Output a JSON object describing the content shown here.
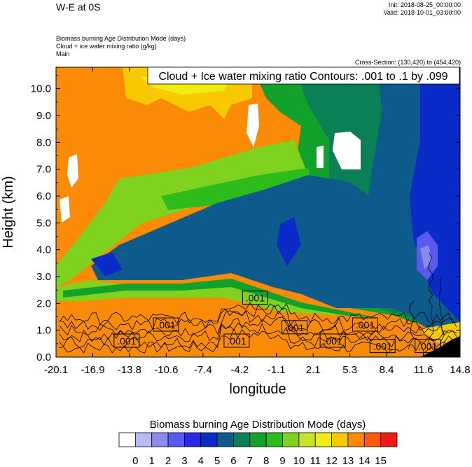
{
  "header": {
    "title": "W-E at 0S",
    "init": "Init: 2018-08-25_00:00:00",
    "valid": "Valid: 2018-10-01_03:00:00",
    "desc_lines": [
      "Biomass burning Age Distribution Mode    (days)",
      "Cloud + ice water mixing ratio    (g/kg)",
      "Main"
    ],
    "cross_section": "Cross-Section: (130,420) to (454,420)"
  },
  "chart_data": {
    "type": "heatmap",
    "title": "Cloud + Ice water mixing ratio Contours: .001 to .1 by .099",
    "xlabel": "longitude",
    "ylabel": "Height (km)",
    "xlim": [
      -20.1,
      14.8
    ],
    "ylim": [
      0.0,
      10.8
    ],
    "x_ticks": [
      "-20.1",
      "-16.9",
      "-13.8",
      "-10.6",
      "-7.4",
      "-4.2",
      "-1.1",
      "2.1",
      "5.3",
      "8.4",
      "11.6",
      "14.8"
    ],
    "y_ticks": [
      "0.0",
      "1.0",
      "2.0",
      "3.0",
      "4.0",
      "5.0",
      "6.0",
      "7.0",
      "8.0",
      "9.0",
      "10.0"
    ],
    "y_tick_values": [
      0,
      1,
      2,
      3,
      4,
      5,
      6,
      7,
      8,
      9,
      10
    ],
    "contour_labels": [
      {
        "text": ".001",
        "lon": -14.0,
        "h": 0.6
      },
      {
        "text": ".001",
        "lon": -10.6,
        "h": 1.2
      },
      {
        "text": ".001",
        "lon": -4.5,
        "h": 0.6
      },
      {
        "text": ".001",
        "lon": -2.9,
        "h": 2.2
      },
      {
        "text": ".001",
        "lon": 0.5,
        "h": 1.1
      },
      {
        "text": ".001",
        "lon": 3.8,
        "h": 0.6
      },
      {
        "text": ".001",
        "lon": 6.6,
        "h": 1.2
      },
      {
        "text": ".001",
        "lon": 8.1,
        "h": 0.4
      },
      {
        "text": ".001",
        "lon": 12.0,
        "h": 0.4
      }
    ],
    "field": {
      "description": "Biomass burning Age Distribution Mode (days) shaded; layer levels by longitude",
      "columns": [
        {
          "lon": -20.1,
          "levels": [
            {
              "top": 1.5,
              "v": 14
            },
            {
              "top": 2.4,
              "v": 11
            },
            {
              "top": 3.0,
              "v": 10
            },
            {
              "top": 10.8,
              "v": 14
            }
          ]
        },
        {
          "lon": -17.0,
          "levels": [
            {
              "top": 1.6,
              "v": 14
            },
            {
              "top": 2.6,
              "v": 11
            },
            {
              "top": 3.3,
              "v": 10
            },
            {
              "top": 3.6,
              "v": 5
            },
            {
              "top": 10.8,
              "v": 14
            }
          ]
        },
        {
          "lon": -14.0,
          "levels": [
            {
              "top": 1.8,
              "v": 14
            },
            {
              "top": 2.8,
              "v": 11
            },
            {
              "top": 3.3,
              "v": 8
            },
            {
              "top": 4.0,
              "v": 5
            },
            {
              "top": 5.5,
              "v": 11
            },
            {
              "top": 8.5,
              "v": 14
            },
            {
              "top": 10.8,
              "v": 13
            }
          ]
        },
        {
          "lon": -10.0,
          "levels": [
            {
              "top": 1.9,
              "v": 14
            },
            {
              "top": 2.9,
              "v": 11
            },
            {
              "top": 3.4,
              "v": 8
            },
            {
              "top": 5.2,
              "v": 5
            },
            {
              "top": 6.5,
              "v": 11
            },
            {
              "top": 10.8,
              "v": 12
            }
          ]
        },
        {
          "lon": -6.0,
          "levels": [
            {
              "top": 2.0,
              "v": 14
            },
            {
              "top": 2.8,
              "v": 11
            },
            {
              "top": 3.3,
              "v": 8
            },
            {
              "top": 5.6,
              "v": 5
            },
            {
              "top": 7.3,
              "v": 11
            },
            {
              "top": 8.0,
              "v": 9
            },
            {
              "top": 10.8,
              "v": 12
            }
          ]
        },
        {
          "lon": -2.0,
          "levels": [
            {
              "top": 2.1,
              "v": 14
            },
            {
              "top": 2.9,
              "v": 11
            },
            {
              "top": 3.3,
              "v": 8
            },
            {
              "top": 6.1,
              "v": 5
            },
            {
              "top": 7.0,
              "v": 9
            },
            {
              "top": 8.7,
              "v": 8
            },
            {
              "top": 10.8,
              "v": 7
            }
          ]
        },
        {
          "lon": 2.0,
          "levels": [
            {
              "top": 1.7,
              "v": 14
            },
            {
              "top": 2.3,
              "v": 9
            },
            {
              "top": 6.6,
              "v": 5
            },
            {
              "top": 10.8,
              "v": 8
            }
          ]
        },
        {
          "lon": 6.0,
          "levels": [
            {
              "top": 1.5,
              "v": 14
            },
            {
              "top": 2.1,
              "v": 8
            },
            {
              "top": 6.8,
              "v": 5
            },
            {
              "top": 10.8,
              "v": 7
            }
          ]
        },
        {
          "lon": 10.0,
          "levels": [
            {
              "top": 1.4,
              "v": 14
            },
            {
              "top": 2.1,
              "v": 8
            },
            {
              "top": 10.8,
              "v": 5
            }
          ]
        },
        {
          "lon": 14.8,
          "levels": [
            {
              "top": 0.5,
              "v": 14
            },
            {
              "top": 1.5,
              "v": 7
            },
            {
              "top": 10.8,
              "v": 4
            }
          ]
        }
      ]
    }
  },
  "colorbar": {
    "title": "Biomass burning Age Distribution Mode  (days)",
    "labels": [
      "0",
      "1",
      "2",
      "3",
      "4",
      "5",
      "6",
      "7",
      "8",
      "9",
      "10",
      "11",
      "12",
      "13",
      "14",
      "15"
    ],
    "colors": [
      "#ffffff",
      "#b9b9f5",
      "#8a8af0",
      "#5a5af0",
      "#2828e6",
      "#0a2bc8",
      "#0d5a8c",
      "#0b7f55",
      "#12a12a",
      "#2ebb1c",
      "#7fd21e",
      "#c8e628",
      "#eeee10",
      "#f8c800",
      "#fb8a06",
      "#fa5a0a",
      "#ee1c14"
    ]
  }
}
